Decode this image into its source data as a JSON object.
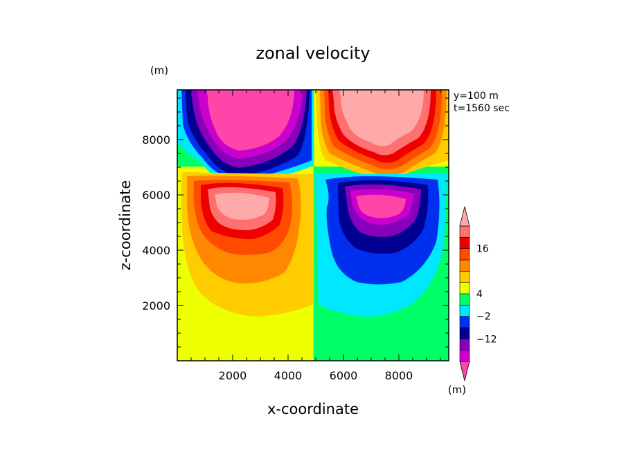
{
  "chart_data": {
    "type": "heatmap",
    "title": "zonal velocity",
    "xlabel": "x-coordinate",
    "ylabel": "z-coordinate",
    "y_unit_label": "(m)",
    "colorbar_unit_label": "(m)",
    "annotations": [
      "y=100 m",
      "t=1560 sec"
    ],
    "xlim": [
      0,
      9800
    ],
    "ylim": [
      0,
      9800
    ],
    "x_ticks": [
      2000,
      4000,
      6000,
      8000
    ],
    "y_ticks": [
      2000,
      4000,
      6000,
      8000
    ],
    "colorbar": {
      "tick_labels": [
        "16",
        "4",
        "−2",
        "−12"
      ],
      "colors_bottom_to_top": [
        "#cc00cc",
        "#8800bb",
        "#000090",
        "#0030ee",
        "#00e8ff",
        "#00ff66",
        "#eeff00",
        "#ffcc00",
        "#ff8800",
        "#ff4a00",
        "#ee0000",
        "#ff7070"
      ],
      "extend_top_color": "#ffaaaa",
      "extend_bottom_color": "#ff44aa"
    },
    "features": [
      {
        "name": "upper-left negative core",
        "x": 2500,
        "z": 8800,
        "peak_level": "< -16"
      },
      {
        "name": "upper-right positive core",
        "x": 7500,
        "z": 8800,
        "peak_level": "> 16"
      },
      {
        "name": "mid-left positive core",
        "x": 2600,
        "z": 5700,
        "peak_level": "> 16"
      },
      {
        "name": "mid-right negative core",
        "x": 7600,
        "z": 5700,
        "peak_level": "< -16"
      }
    ]
  }
}
